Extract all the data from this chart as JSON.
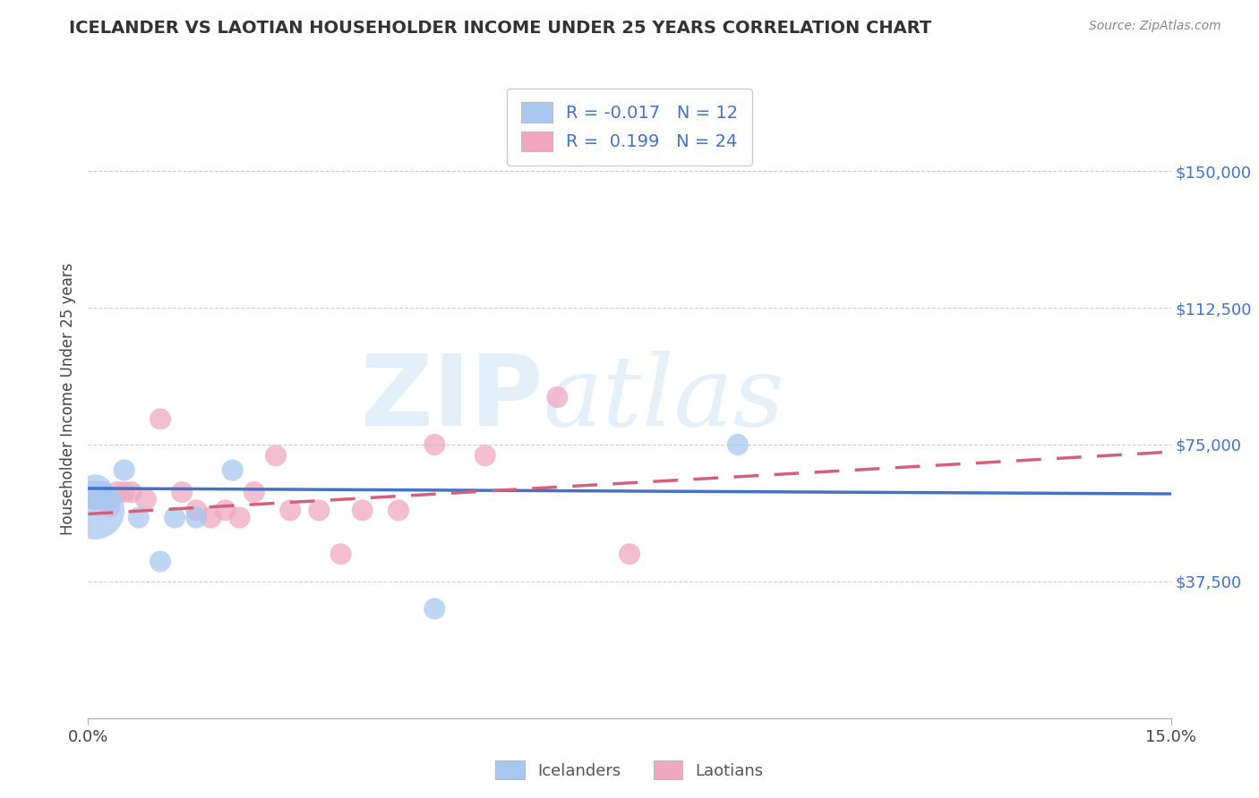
{
  "title": "ICELANDER VS LAOTIAN HOUSEHOLDER INCOME UNDER 25 YEARS CORRELATION CHART",
  "source": "Source: ZipAtlas.com",
  "ylabel": "Householder Income Under 25 years",
  "xlim": [
    0.0,
    0.15
  ],
  "ylim": [
    0,
    175000
  ],
  "yticks": [
    0,
    37500,
    75000,
    112500,
    150000
  ],
  "ytick_labels": [
    "",
    "$37,500",
    "$75,000",
    "$112,500",
    "$150,000"
  ],
  "xticks": [
    0.0,
    0.15
  ],
  "xtick_labels": [
    "0.0%",
    "15.0%"
  ],
  "watermark_zip": "ZIP",
  "watermark_atlas": "atlas",
  "legend_icelander_R": "-0.017",
  "legend_icelander_N": "12",
  "legend_laotian_R": "0.199",
  "legend_laotian_N": "24",
  "icelander_color": "#a8c8f0",
  "laotian_color": "#f0a8c0",
  "icelander_line_color": "#4472c4",
  "laotian_line_color": "#d4607a",
  "background_color": "#ffffff",
  "grid_color": "#cccccc",
  "icelander_x": [
    0.001,
    0.001,
    0.002,
    0.003,
    0.005,
    0.007,
    0.01,
    0.012,
    0.015,
    0.02,
    0.048,
    0.09
  ],
  "icelander_y": [
    62000,
    57000,
    62000,
    60000,
    68000,
    55000,
    43000,
    55000,
    55000,
    68000,
    30000,
    75000
  ],
  "icelander_sizes": [
    800,
    2200,
    300,
    300,
    300,
    300,
    300,
    300,
    300,
    300,
    300,
    300
  ],
  "laotian_x": [
    0.001,
    0.002,
    0.003,
    0.004,
    0.005,
    0.006,
    0.008,
    0.01,
    0.013,
    0.015,
    0.017,
    0.019,
    0.021,
    0.023,
    0.026,
    0.028,
    0.032,
    0.035,
    0.038,
    0.043,
    0.048,
    0.055,
    0.065,
    0.075
  ],
  "laotian_y": [
    60000,
    60000,
    58000,
    62000,
    62000,
    62000,
    60000,
    82000,
    62000,
    57000,
    55000,
    57000,
    55000,
    62000,
    72000,
    57000,
    57000,
    45000,
    57000,
    57000,
    75000,
    72000,
    88000,
    45000
  ],
  "laotian_sizes": [
    300,
    300,
    300,
    300,
    300,
    300,
    300,
    300,
    300,
    300,
    300,
    300,
    300,
    300,
    300,
    300,
    300,
    300,
    300,
    300,
    300,
    300,
    300,
    300
  ],
  "icelander_trend_x": [
    0.0,
    0.15
  ],
  "icelander_trend_y": [
    63000,
    61500
  ],
  "laotian_trend_x": [
    0.0,
    0.15
  ],
  "laotian_trend_y": [
    56000,
    73000
  ]
}
